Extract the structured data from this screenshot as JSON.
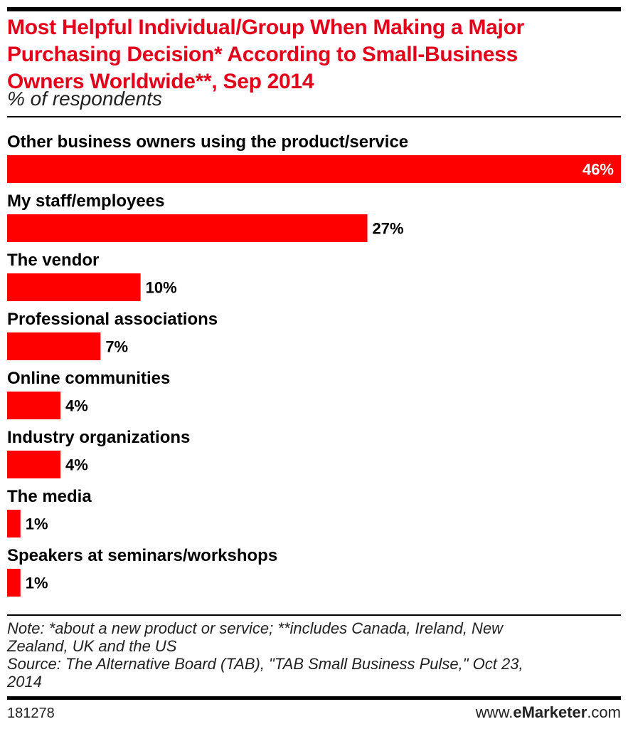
{
  "chart_data": {
    "type": "bar",
    "orientation": "horizontal",
    "title": "Most Helpful Individual/Group When Making a Major\nPurchasing Decision* According to Small-Business\nOwners Worldwide**, Sep 2014",
    "subtitle": "% of respondents",
    "categories": [
      "Other business owners using the product/service",
      "My staff/employees",
      "The vendor",
      "Professional associations",
      "Online communities",
      "Industry organizations",
      "The media",
      "Speakers at seminars/workshops"
    ],
    "values": [
      46,
      27,
      10,
      7,
      4,
      4,
      1,
      1
    ],
    "value_labels": [
      "46%",
      "27%",
      "10%",
      "7%",
      "4%",
      "4%",
      "1%",
      "1%"
    ],
    "xlim": [
      0,
      46
    ],
    "grid": false,
    "legend": "none",
    "bar_color": "#ff0000"
  },
  "notes": {
    "note": "Note: *about a new product or service; **includes Canada, Ireland, New\nZealand, UK and the US",
    "source": "Source: The Alternative Board (TAB), \"TAB Small Business Pulse,\" Oct 23,\n2014"
  },
  "footer": {
    "chart_id": "181278",
    "brand_prefix": "www.",
    "brand_bold": "eMarketer",
    "brand_suffix": ".com"
  },
  "colors": {
    "title": "#e4001b",
    "bar": "#ff0000",
    "rule": "#000000"
  }
}
